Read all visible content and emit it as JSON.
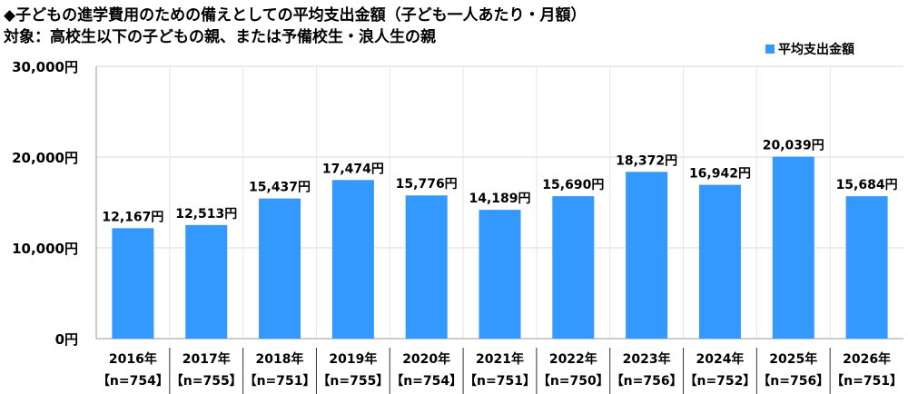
{
  "chart_data": {
    "type": "bar",
    "title": "◆子どもの進学費用のための備えとしての平均支出金額（子ども一人あたり・月額）",
    "subtitle": "対象：高校生以下の子どもの親、または予備校生・浪人生の親",
    "categories": [
      "2016年",
      "2017年",
      "2018年",
      "2019年",
      "2020年",
      "2021年",
      "2022年",
      "2023年",
      "2024年",
      "2025年",
      "2026年"
    ],
    "sample_sizes": [
      "【n=754】",
      "【n=755】",
      "【n=751】",
      "【n=755】",
      "【n=754】",
      "【n=751】",
      "【n=750】",
      "【n=756】",
      "【n=752】",
      "【n=756】",
      "【n=751】"
    ],
    "series": [
      {
        "name": "平均支出金額",
        "values": [
          12167,
          12513,
          15437,
          17474,
          15776,
          14189,
          15690,
          18372,
          16942,
          20039,
          15684
        ],
        "color": "#3399ff"
      }
    ],
    "data_labels": [
      "12,167円",
      "12,513円",
      "15,437円",
      "17,474円",
      "15,776円",
      "14,189円",
      "15,690円",
      "18,372円",
      "16,942円",
      "20,039円",
      "15,684円"
    ],
    "yticks": [
      0,
      10000,
      20000,
      30000
    ],
    "ytick_labels": [
      "0円",
      "10,000円",
      "20,000円",
      "30,000円"
    ],
    "ylim": [
      0,
      30000
    ],
    "grid": true,
    "legend": "top-right"
  }
}
